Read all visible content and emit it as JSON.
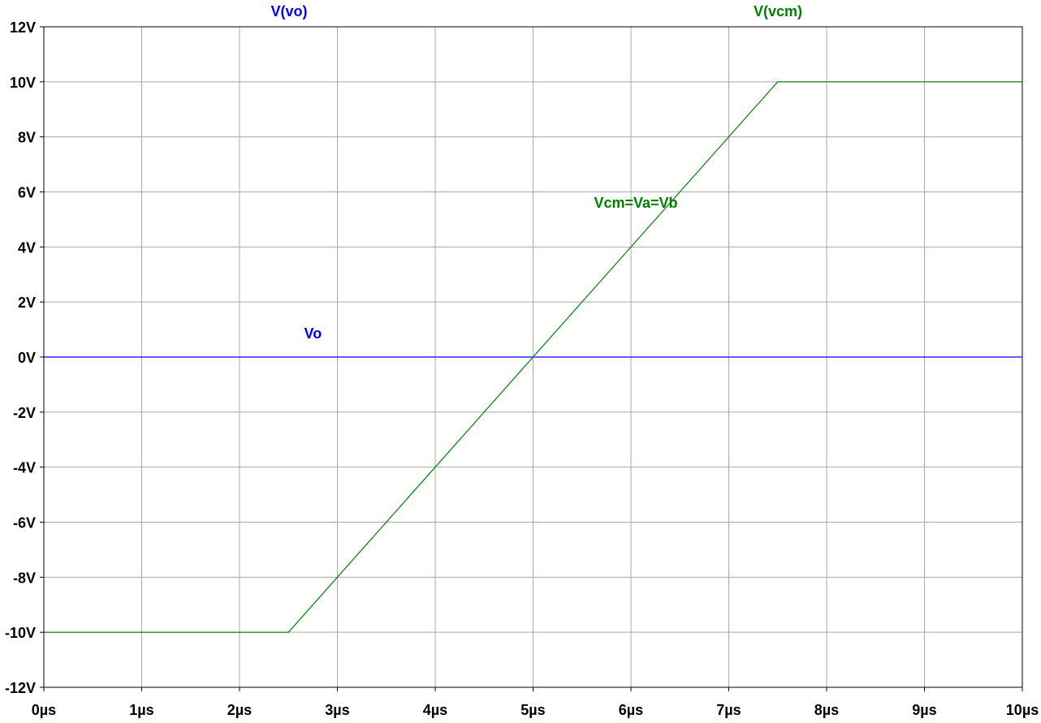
{
  "chart_data": {
    "type": "line",
    "x_unit": "µs",
    "y_unit": "V",
    "xlim": [
      0,
      10
    ],
    "ylim": [
      -12,
      12
    ],
    "grid": true,
    "x_ticks": [
      "0µs",
      "1µs",
      "2µs",
      "3µs",
      "4µs",
      "5µs",
      "6µs",
      "7µs",
      "8µs",
      "9µs",
      "10µs"
    ],
    "y_ticks": [
      "12V",
      "10V",
      "8V",
      "6V",
      "4V",
      "2V",
      "0V",
      "-2V",
      "-4V",
      "-6V",
      "-8V",
      "-10V",
      "-12V"
    ],
    "series": [
      {
        "name": "V(vo)",
        "color": "#0000ff",
        "x": [
          0,
          10
        ],
        "y": [
          0,
          0
        ]
      },
      {
        "name": "V(vcm)",
        "color": "#008000",
        "x": [
          0,
          2.5,
          7.5,
          10
        ],
        "y": [
          -10,
          -10,
          10,
          10
        ]
      }
    ],
    "annotations": [
      {
        "text": "Vo",
        "x": 2.75,
        "y": 0.85,
        "color": "#0000ff"
      },
      {
        "text": "Vcm=Va=Vb",
        "x": 6.05,
        "y": 5.6,
        "color": "#008000"
      }
    ]
  }
}
